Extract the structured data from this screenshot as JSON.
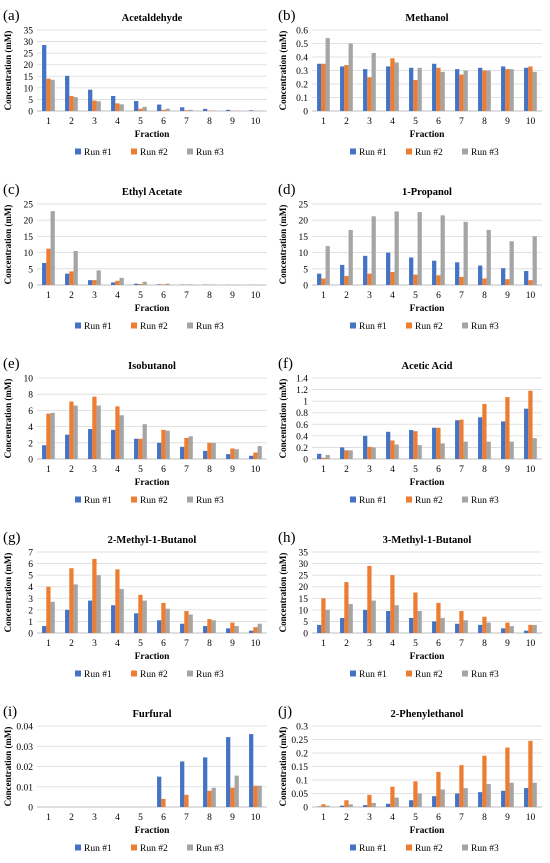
{
  "legend_labels": [
    "Run #1",
    "Run #2",
    "Run #3"
  ],
  "colors": {
    "run1": "#4472C4",
    "run2": "#ED7D31",
    "run3": "#A5A5A5",
    "grid": "#D9D9D9",
    "axis": "#BFBFBF"
  },
  "chart_data": [
    {
      "panel": "(a)",
      "type": "bar",
      "title": "Acetaldehyde",
      "xlabel": "Fraction",
      "ylabel": "Concentration (mM)",
      "categories": [
        "1",
        "2",
        "3",
        "4",
        "5",
        "6",
        "7",
        "8",
        "9",
        "10"
      ],
      "ylim": [
        0,
        35
      ],
      "yticks": [
        "0",
        "5",
        "10",
        "15",
        "20",
        "25",
        "30",
        "35"
      ],
      "grid": true,
      "legend": "bottom",
      "series": [
        {
          "name": "Run #1",
          "values": [
            28.5,
            15.2,
            9.2,
            6.5,
            4.3,
            2.8,
            1.6,
            0.9,
            0.5,
            0.3
          ]
        },
        {
          "name": "Run #2",
          "values": [
            14.0,
            6.5,
            4.5,
            3.3,
            1.0,
            0.5,
            0.3,
            0.2,
            0.1,
            0.1
          ]
        },
        {
          "name": "Run #3",
          "values": [
            13.5,
            6.0,
            4.2,
            2.9,
            1.8,
            1.0,
            0.5,
            0.2,
            0.1,
            0.1
          ]
        }
      ]
    },
    {
      "panel": "(b)",
      "type": "bar",
      "title": "Methanol",
      "xlabel": "Fraction",
      "ylabel": "Concentration (mM)",
      "categories": [
        "1",
        "2",
        "3",
        "4",
        "5",
        "6",
        "7",
        "8",
        "9",
        "10"
      ],
      "ylim": [
        0,
        0.6
      ],
      "yticks": [
        "0",
        "0.1",
        "0.2",
        "0.3",
        "0.4",
        "0.5",
        "0.6"
      ],
      "grid": true,
      "legend": "bottom",
      "series": [
        {
          "name": "Run #1",
          "values": [
            0.35,
            0.33,
            0.31,
            0.33,
            0.32,
            0.35,
            0.31,
            0.32,
            0.33,
            0.32
          ]
        },
        {
          "name": "Run #2",
          "values": [
            0.35,
            0.34,
            0.25,
            0.39,
            0.23,
            0.32,
            0.27,
            0.3,
            0.31,
            0.33
          ]
        },
        {
          "name": "Run #3",
          "values": [
            0.54,
            0.5,
            0.43,
            0.36,
            0.32,
            0.29,
            0.3,
            0.3,
            0.31,
            0.29
          ]
        }
      ]
    },
    {
      "panel": "(c)",
      "type": "bar",
      "title": "Ethyl Acetate",
      "xlabel": "Fraction",
      "ylabel": "Concentration (mM)",
      "categories": [
        "1",
        "2",
        "3",
        "4",
        "5",
        "6",
        "7",
        "8",
        "9",
        "10"
      ],
      "ylim": [
        0,
        25
      ],
      "yticks": [
        "0",
        "5",
        "10",
        "15",
        "20",
        "25"
      ],
      "grid": true,
      "legend": "bottom",
      "series": [
        {
          "name": "Run #1",
          "values": [
            6.8,
            3.5,
            1.5,
            0.8,
            0.4,
            0.2,
            0.1,
            0.1,
            0.05,
            0.05
          ]
        },
        {
          "name": "Run #2",
          "values": [
            11.2,
            4.2,
            1.5,
            1.3,
            0.3,
            0.2,
            0.1,
            0.1,
            0.05,
            0.05
          ]
        },
        {
          "name": "Run #3",
          "values": [
            22.8,
            10.5,
            4.5,
            2.2,
            1.0,
            0.4,
            0.2,
            0.1,
            0.1,
            0.05
          ]
        }
      ]
    },
    {
      "panel": "(d)",
      "type": "bar",
      "title": "1-Propanol",
      "xlabel": "Fraction",
      "ylabel": "Concentration (mM)",
      "categories": [
        "1",
        "2",
        "3",
        "4",
        "5",
        "6",
        "7",
        "8",
        "9",
        "10"
      ],
      "ylim": [
        0,
        25
      ],
      "yticks": [
        "0",
        "5",
        "10",
        "15",
        "20",
        "25"
      ],
      "grid": true,
      "legend": "bottom",
      "series": [
        {
          "name": "Run #1",
          "values": [
            3.5,
            6.2,
            9.0,
            10.0,
            8.5,
            7.5,
            7.0,
            6.0,
            5.2,
            4.3
          ]
        },
        {
          "name": "Run #2",
          "values": [
            2.0,
            2.8,
            3.5,
            4.0,
            3.2,
            3.0,
            2.5,
            2.0,
            1.8,
            1.5
          ]
        },
        {
          "name": "Run #3",
          "values": [
            12.0,
            17.0,
            21.2,
            22.7,
            22.5,
            21.5,
            19.5,
            17.0,
            13.5,
            15.0
          ]
        }
      ]
    },
    {
      "panel": "(e)",
      "type": "bar",
      "title": "Isobutanol",
      "xlabel": "Fraction",
      "ylabel": "Concentration (mM)",
      "categories": [
        "1",
        "2",
        "3",
        "4",
        "5",
        "6",
        "7",
        "8",
        "9",
        "10"
      ],
      "ylim": [
        0,
        10
      ],
      "yticks": [
        "0",
        "2",
        "4",
        "6",
        "8",
        "10"
      ],
      "grid": true,
      "legend": "bottom",
      "series": [
        {
          "name": "Run #1",
          "values": [
            1.7,
            3.0,
            3.7,
            3.6,
            2.5,
            2.0,
            1.5,
            1.0,
            0.6,
            0.4
          ]
        },
        {
          "name": "Run #2",
          "values": [
            5.6,
            7.1,
            7.7,
            6.5,
            2.5,
            3.6,
            2.6,
            2.0,
            1.3,
            0.8
          ]
        },
        {
          "name": "Run #3",
          "values": [
            5.7,
            6.6,
            6.6,
            5.4,
            4.3,
            3.5,
            2.8,
            2.0,
            1.2,
            1.6
          ]
        }
      ]
    },
    {
      "panel": "(f)",
      "type": "bar",
      "title": "Acetic Acid",
      "xlabel": "Fraction",
      "ylabel": "Concentration (mM)",
      "categories": [
        "1",
        "2",
        "3",
        "4",
        "5",
        "6",
        "7",
        "8",
        "9",
        "10"
      ],
      "ylim": [
        0,
        1.4
      ],
      "yticks": [
        "0",
        "0.2",
        "0.4",
        "0.6",
        "0.8",
        "1",
        "1.2",
        "1.4"
      ],
      "grid": true,
      "legend": "bottom",
      "series": [
        {
          "name": "Run #1",
          "values": [
            0.09,
            0.2,
            0.4,
            0.47,
            0.5,
            0.54,
            0.67,
            0.72,
            0.65,
            0.87
          ]
        },
        {
          "name": "Run #2",
          "values": [
            0.02,
            0.15,
            0.21,
            0.32,
            0.48,
            0.54,
            0.68,
            0.95,
            1.07,
            1.18
          ]
        },
        {
          "name": "Run #3",
          "values": [
            0.07,
            0.15,
            0.2,
            0.25,
            0.24,
            0.27,
            0.3,
            0.3,
            0.3,
            0.36
          ]
        }
      ]
    },
    {
      "panel": "(g)",
      "type": "bar",
      "title": "2-Methyl-1-Butanol",
      "xlabel": "Fraction",
      "ylabel": "Concentration (mM)",
      "categories": [
        "1",
        "2",
        "3",
        "4",
        "5",
        "6",
        "7",
        "8",
        "9",
        "10"
      ],
      "ylim": [
        0,
        7
      ],
      "yticks": [
        "0",
        "1",
        "2",
        "3",
        "4",
        "5",
        "6",
        "7"
      ],
      "grid": true,
      "legend": "bottom",
      "series": [
        {
          "name": "Run #1",
          "values": [
            0.6,
            2.0,
            2.8,
            2.4,
            1.7,
            1.1,
            0.8,
            0.6,
            0.4,
            0.2
          ]
        },
        {
          "name": "Run #2",
          "values": [
            4.0,
            5.6,
            6.4,
            5.5,
            3.3,
            2.6,
            1.9,
            1.2,
            0.9,
            0.5
          ]
        },
        {
          "name": "Run #3",
          "values": [
            2.7,
            4.2,
            5.0,
            3.8,
            2.8,
            2.1,
            1.6,
            1.1,
            0.6,
            0.8
          ]
        }
      ]
    },
    {
      "panel": "(h)",
      "type": "bar",
      "title": "3-Methyl-1-Butanol",
      "xlabel": "Fraction",
      "ylabel": "Concentration (mM)",
      "categories": [
        "1",
        "2",
        "3",
        "4",
        "5",
        "6",
        "7",
        "8",
        "9",
        "10"
      ],
      "ylim": [
        0,
        35
      ],
      "yticks": [
        "0",
        "5",
        "10",
        "15",
        "20",
        "25",
        "30",
        "35"
      ],
      "grid": true,
      "legend": "bottom",
      "series": [
        {
          "name": "Run #1",
          "values": [
            3.5,
            6.5,
            10.0,
            9.5,
            6.5,
            5.0,
            4.0,
            3.5,
            2.0,
            1.0
          ]
        },
        {
          "name": "Run #2",
          "values": [
            15.0,
            22.0,
            29.0,
            25.0,
            17.5,
            13.0,
            9.5,
            7.0,
            4.5,
            3.5
          ]
        },
        {
          "name": "Run #3",
          "values": [
            10.0,
            12.5,
            14.0,
            12.0,
            9.5,
            6.5,
            5.5,
            4.5,
            3.0,
            3.5
          ]
        }
      ]
    },
    {
      "panel": "(i)",
      "type": "bar",
      "title": "Furfural",
      "xlabel": "Fraction",
      "ylabel": "Concentration (mM)",
      "categories": [
        "1",
        "2",
        "3",
        "4",
        "5",
        "6",
        "7",
        "8",
        "9",
        "10"
      ],
      "ylim": [
        0,
        0.04
      ],
      "yticks": [
        "0",
        "0.01",
        "0.02",
        "0.03",
        "0.04"
      ],
      "grid": true,
      "legend": "bottom",
      "series": [
        {
          "name": "Run #1",
          "values": [
            0,
            0,
            0,
            0,
            0,
            0.015,
            0.0225,
            0.0245,
            0.0345,
            0.036
          ]
        },
        {
          "name": "Run #2",
          "values": [
            0,
            0,
            0,
            0,
            0,
            0.004,
            0.006,
            0.008,
            0.0095,
            0.0105
          ]
        },
        {
          "name": "Run #3",
          "values": [
            0,
            0,
            0,
            0,
            0,
            0,
            0,
            0.0095,
            0.0155,
            0.0105
          ]
        }
      ]
    },
    {
      "panel": "(j)",
      "type": "bar",
      "title": "2-Phenylethanol",
      "xlabel": "Fraction",
      "ylabel": "Concentration (mM)",
      "categories": [
        "1",
        "2",
        "3",
        "4",
        "5",
        "6",
        "7",
        "8",
        "9",
        "10"
      ],
      "ylim": [
        0,
        0.3
      ],
      "yticks": [
        "0",
        "0.05",
        "0.1",
        "0.15",
        "0.2",
        "0.25",
        "0.3"
      ],
      "grid": true,
      "legend": "bottom",
      "series": [
        {
          "name": "Run #1",
          "values": [
            0.002,
            0.005,
            0.007,
            0.012,
            0.025,
            0.04,
            0.05,
            0.055,
            0.06,
            0.07
          ]
        },
        {
          "name": "Run #2",
          "values": [
            0.01,
            0.025,
            0.045,
            0.075,
            0.095,
            0.13,
            0.155,
            0.19,
            0.22,
            0.245
          ]
        },
        {
          "name": "Run #3",
          "values": [
            0.005,
            0.01,
            0.015,
            0.035,
            0.05,
            0.065,
            0.07,
            0.085,
            0.09,
            0.09
          ]
        }
      ]
    }
  ]
}
